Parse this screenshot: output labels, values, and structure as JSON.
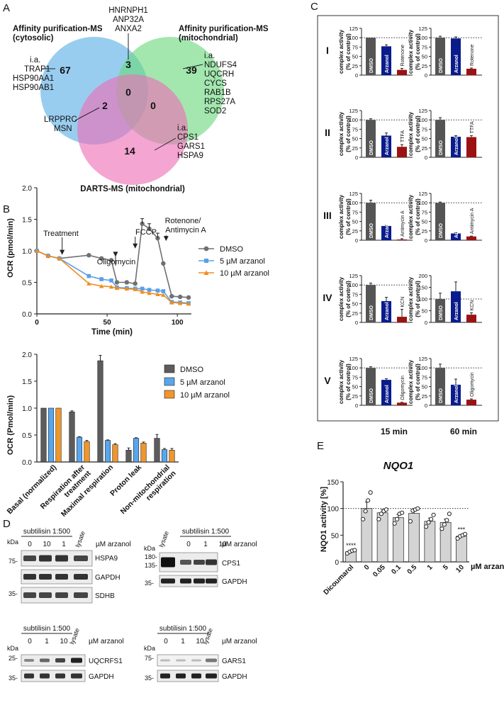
{
  "panel_labels": [
    "A",
    "B",
    "C",
    "D",
    "E"
  ],
  "venn": {
    "circle_titles": {
      "cyto": [
        "Affinity purification-MS",
        "(cytosolic)"
      ],
      "mito": [
        "Affinity purification-MS",
        "(mitochondrial)"
      ],
      "darts": [
        "DARTS-MS (mitochondrial)"
      ]
    },
    "counts": {
      "cyto_only": "67",
      "cyto_mito": "3",
      "mito_only": "39",
      "all": "0",
      "cyto_darts": "2",
      "mito_darts": "0",
      "darts_only": "14"
    },
    "colors": {
      "cyto": "#5aaee6",
      "mito": "#6ad97e",
      "darts": "#ee6eb6"
    },
    "labels": {
      "top": [
        "HNRNPH1",
        "ANP32A",
        "ANXA2"
      ],
      "cyto": [
        "i.a.",
        "TRAP1",
        "HSP90AA1",
        "HSP90AB1"
      ],
      "mito": [
        "i.a.",
        "NDUFS4",
        "UQCRH",
        "CYCS",
        "RAB1B",
        "RPS27A",
        "SOD2"
      ],
      "cyto_darts": [
        "LRPPRC",
        "MSN"
      ],
      "darts": [
        "i.a.",
        "CPS1",
        "GARS1",
        "HSPA9"
      ]
    }
  },
  "ocr_time": {
    "chart_data": {
      "type": "line",
      "ylabel": "OCR (pmol/min)",
      "xlabel": "Time (min)",
      "xlim": [
        0,
        110
      ],
      "ylim": [
        0,
        2
      ],
      "xticks": [
        "0",
        "50",
        "100"
      ],
      "yticks": [
        "0.0",
        "0.5",
        "1.0",
        "1.5",
        "2.0"
      ],
      "series": [
        {
          "name": "DMSO",
          "color": "#707070",
          "marker": "circle",
          "x": [
            0,
            8,
            16,
            37,
            46,
            53,
            57,
            64,
            70,
            75,
            80,
            86,
            90,
            96,
            102,
            108
          ],
          "y": [
            1.0,
            0.92,
            0.88,
            0.93,
            0.88,
            0.85,
            0.5,
            0.5,
            0.48,
            1.43,
            1.35,
            1.2,
            0.8,
            0.28,
            0.27,
            0.26
          ]
        },
        {
          "name": "5 µM arzanol",
          "color": "#5aa0e6",
          "marker": "square",
          "x": [
            0,
            8,
            16,
            37,
            46,
            53,
            57,
            64,
            70,
            75,
            80,
            86,
            90,
            96,
            102,
            108
          ],
          "y": [
            1.0,
            0.92,
            0.88,
            0.6,
            0.55,
            0.53,
            0.42,
            0.41,
            0.4,
            0.4,
            0.38,
            0.37,
            0.36,
            0.19,
            0.18,
            0.17
          ]
        },
        {
          "name": "10 µM arzanol",
          "color": "#f08c1e",
          "marker": "triangle",
          "x": [
            0,
            8,
            16,
            37,
            46,
            53,
            57,
            64,
            70,
            75,
            80,
            86,
            90,
            96,
            102,
            108
          ],
          "y": [
            1.0,
            0.92,
            0.88,
            0.48,
            0.44,
            0.43,
            0.41,
            0.4,
            0.39,
            0.35,
            0.33,
            0.31,
            0.3,
            0.18,
            0.17,
            0.16
          ]
        }
      ],
      "annotations": [
        "Treatment",
        "Oligomycin",
        "FCCP",
        "Rotenone/",
        "Antimycin A"
      ]
    }
  },
  "ocr_bar": {
    "chart_data": {
      "type": "bar",
      "ylabel": "OCR (Pmol/min)",
      "ylim": [
        0,
        2
      ],
      "yticks": [
        "0.0",
        "0.5",
        "1.0",
        "1.5",
        "2.0"
      ],
      "categories": [
        [
          "Basal (normalized)"
        ],
        [
          "Respiration after",
          "treatment"
        ],
        [
          "Maximal respiration"
        ],
        [
          "Proton leak"
        ],
        [
          "Non-mitochondrial",
          "respiration"
        ]
      ],
      "series": [
        {
          "name": "DMSO",
          "color": "#5c5c5c",
          "values": [
            1.0,
            0.93,
            1.88,
            0.22,
            0.44
          ],
          "err": [
            0,
            0.02,
            0.1,
            0.04,
            0.07
          ]
        },
        {
          "name": "5 µM arzanol",
          "color": "#5aa6ec",
          "values": [
            1.0,
            0.46,
            0.4,
            0.44,
            0.23
          ],
          "err": [
            0,
            0.01,
            0.01,
            0.01,
            0.02
          ]
        },
        {
          "name": "10 µM arzanol",
          "color": "#f0962a",
          "values": [
            1.0,
            0.38,
            0.32,
            0.35,
            0.22
          ],
          "err": [
            0,
            0.02,
            0.02,
            0.02,
            0.03
          ]
        }
      ]
    }
  },
  "complex": {
    "ylabel": [
      "complex activity",
      "(% of control)"
    ],
    "col_labels": [
      "15 min",
      "60 min"
    ],
    "bar_labels": [
      "DMSO",
      "Arzanol"
    ],
    "colors": [
      "#555555",
      "#0a1c8c",
      "#9c1212"
    ],
    "rows": [
      {
        "roman": "I",
        "inhibitor": "Rotenone",
        "ticks": [
          "0",
          "25",
          "50",
          "75",
          "100",
          "125"
        ],
        "ymax": 125,
        "panels": [
          {
            "values": [
              100,
              77,
              14
            ],
            "err": [
              0,
              4,
              4
            ]
          },
          {
            "values": [
              100,
              98,
              17
            ],
            "err": [
              4,
              4,
              2
            ]
          }
        ]
      },
      {
        "roman": "II",
        "inhibitor": "TTFA",
        "ticks": [
          "0",
          "25",
          "50",
          "75",
          "100",
          "125"
        ],
        "ymax": 125,
        "panels": [
          {
            "values": [
              100,
              58,
              28
            ],
            "err": [
              3,
              7,
              6
            ]
          },
          {
            "values": [
              100,
              55,
              54
            ],
            "err": [
              6,
              3,
              4
            ]
          }
        ]
      },
      {
        "roman": "III",
        "inhibitor": "Antimycin A",
        "ticks": [
          "0",
          "25",
          "50",
          "75",
          "100",
          "125"
        ],
        "ymax": 125,
        "panels": [
          {
            "values": [
              100,
              38,
              2
            ],
            "err": [
              7,
              2,
              2
            ]
          },
          {
            "values": [
              100,
              18,
              10
            ],
            "err": [
              2,
              2,
              1
            ]
          }
        ]
      },
      {
        "roman": "IV",
        "inhibitor": "KCN",
        "ticks15": [
          "0",
          "25",
          "50",
          "75",
          "100",
          "125"
        ],
        "ymax15": 125,
        "ticks60": [
          "0",
          "50",
          "100",
          "150",
          "200"
        ],
        "ymax60": 200,
        "panels": [
          {
            "values": [
              100,
              57,
              15
            ],
            "err": [
              5,
              10,
              20
            ]
          },
          {
            "values": [
              100,
              133,
              33
            ],
            "err": [
              25,
              40,
              8
            ]
          }
        ]
      },
      {
        "roman": "V",
        "inhibitor": "Oligomycin",
        "ticks": [
          "0",
          "25",
          "50",
          "75",
          "100",
          "125"
        ],
        "ymax": 125,
        "panels": [
          {
            "values": [
              100,
              68,
              7
            ],
            "err": [
              3,
              3,
              1
            ]
          },
          {
            "values": [
              100,
              55,
              15
            ],
            "err": [
              10,
              15,
              2
            ]
          }
        ]
      }
    ]
  },
  "nqo1": {
    "chart_data": {
      "type": "bar",
      "title": "NQO1",
      "ylabel": "NQO1 activity [%]",
      "xlabel_suffix": "µM arzanol",
      "ylim": [
        0,
        150
      ],
      "yticks": [
        "0",
        "50",
        "100",
        "150"
      ],
      "categories": [
        "Dicoumarol",
        "0",
        "0.05",
        "0.1",
        "0.5",
        "1",
        "5",
        "10"
      ],
      "values": [
        19,
        100,
        92,
        83,
        91,
        76,
        74,
        48
      ],
      "err": [
        2,
        12,
        6,
        6,
        8,
        6,
        6,
        3
      ],
      "points": [
        [
          16,
          19,
          21,
          22
        ],
        [
          80,
          95,
          115,
          130
        ],
        [
          80,
          90,
          95,
          98
        ],
        [
          72,
          80,
          90,
          92
        ],
        [
          76,
          96,
          98,
          100
        ],
        [
          66,
          74,
          80,
          88
        ],
        [
          62,
          70,
          78,
          90
        ],
        [
          44,
          48,
          50,
          52
        ]
      ],
      "significance": [
        "****",
        "",
        "",
        "",
        "",
        "",
        "",
        "***"
      ],
      "bar_color": "#d4d4d4"
    }
  },
  "blots": {
    "kda": "kDa",
    "arzanol": "µM arzanol",
    "subtilisin": "subtilisin 1:500",
    "lysate": "lysate",
    "panels": [
      {
        "lanes": [
          "0",
          "10",
          "1"
        ],
        "markers": [
          "75-",
          "35-"
        ],
        "proteins": [
          "HSPA9",
          "GAPDH",
          "SDHB"
        ]
      },
      {
        "lanes": [
          "0",
          "1",
          "10"
        ],
        "markers": [
          "180-",
          "135-",
          "35-"
        ],
        "proteins": [
          "CPS1",
          "GAPDH"
        ]
      },
      {
        "lanes": [
          "0",
          "1",
          "10"
        ],
        "markers": [
          "25-",
          "35-"
        ],
        "proteins": [
          "UQCRFS1",
          "GAPDH"
        ]
      },
      {
        "lanes": [
          "0",
          "1",
          "10"
        ],
        "markers": [
          "75-",
          "35-"
        ],
        "proteins": [
          "GARS1",
          "GAPDH"
        ]
      }
    ]
  }
}
